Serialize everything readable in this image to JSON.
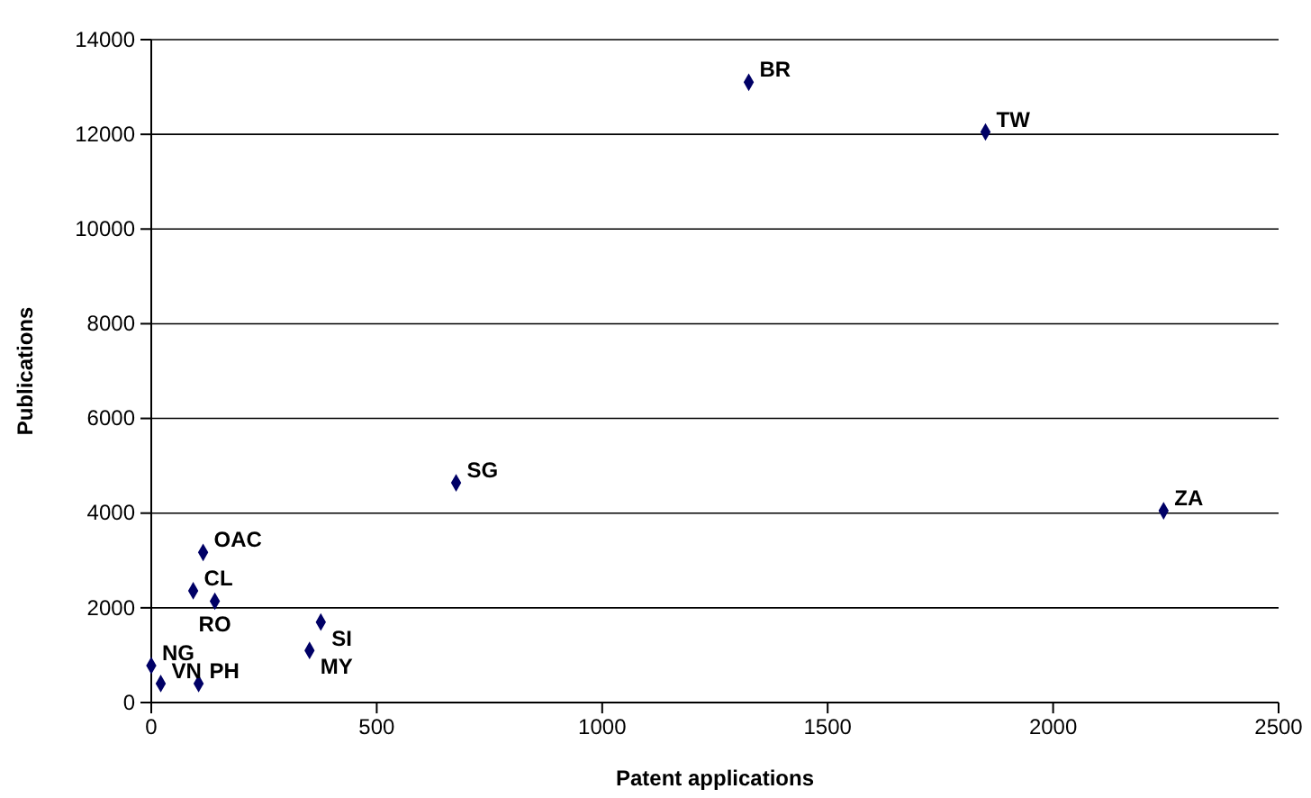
{
  "chart_data": {
    "type": "scatter",
    "xlabel": "Patent applications",
    "ylabel": "Publications",
    "x": [
      1325,
      1850,
      2245,
      676,
      115,
      93,
      141,
      376,
      351,
      0,
      21,
      105
    ],
    "values": [
      13100,
      12050,
      4050,
      4640,
      3170,
      2360,
      2140,
      1700,
      1100,
      780,
      400,
      400
    ],
    "color": "#000066",
    "marker": "diamond",
    "grid": "y",
    "xlim": [
      0,
      2500
    ],
    "xticks": [
      0,
      500,
      1000,
      1500,
      2000,
      2500
    ],
    "ylim": [
      0,
      14000
    ],
    "yticks": [
      0,
      2000,
      4000,
      6000,
      8000,
      10000,
      12000,
      14000
    ],
    "annotations": [
      {
        "text": "BR",
        "x": 1325,
        "y": 13100
      },
      {
        "text": "TW",
        "x": 1850,
        "y": 12050
      },
      {
        "text": "ZA",
        "x": 2245,
        "y": 4050
      },
      {
        "text": "SG",
        "x": 676,
        "y": 4640
      },
      {
        "text": "OAC",
        "x": 115,
        "y": 3170
      },
      {
        "text": "CL",
        "x": 93,
        "y": 2360
      },
      {
        "text": "RO",
        "x": 141,
        "y": 2140
      },
      {
        "text": "SI",
        "x": 376,
        "y": 1700
      },
      {
        "text": "MY",
        "x": 351,
        "y": 1100
      },
      {
        "text": "NG",
        "x": 0,
        "y": 780
      },
      {
        "text": "VN",
        "x": 21,
        "y": 400
      },
      {
        "text": "PH",
        "x": 105,
        "y": 400
      }
    ]
  }
}
